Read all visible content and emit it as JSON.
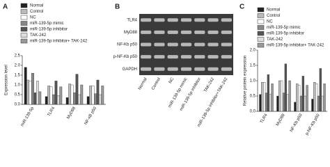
{
  "chart_data": [
    {
      "type": "bar",
      "label": "A",
      "y_label": "Expression level",
      "categories": [
        "miR-139-5p",
        "TLR4",
        "MyD88",
        "NF-κB p50"
      ],
      "series": [
        {
          "name": "Normal",
          "color": "#222222",
          "values": [
            1.9,
            0.4,
            0.35,
            0.4
          ]
        },
        {
          "name": "Control",
          "color": "#bbbbbb",
          "values": [
            1.25,
            0.95,
            1.05,
            0.95
          ]
        },
        {
          "name": "NC",
          "color": "#ffffff",
          "values": [
            1.2,
            0.9,
            1.0,
            0.95
          ]
        },
        {
          "name": "miR-139-5p mimic",
          "color": "#888888",
          "values": [
            1.6,
            0.5,
            0.6,
            0.55
          ]
        },
        {
          "name": "miR-139-5p inhibitor",
          "color": "#555555",
          "values": [
            0.6,
            1.2,
            1.55,
            1.25
          ]
        },
        {
          "name": "TAK-242",
          "color": "#dddddd",
          "values": [
            1.2,
            0.45,
            0.5,
            0.5
          ]
        },
        {
          "name": "miR-139-5p inhibitor+ TAK-242",
          "color": "#999999",
          "values": [
            0.65,
            0.9,
            1.0,
            0.95
          ]
        }
      ],
      "ylim": [
        0,
        2.5
      ],
      "yticks": [
        {
          "value": 0,
          "label": "0.0"
        },
        {
          "value": 0.5,
          "label": "0.5"
        },
        {
          "value": 1,
          "label": "1.0"
        },
        {
          "value": 1.5,
          "label": "1.5"
        },
        {
          "value": 2,
          "label": "2.0"
        },
        {
          "value": 2.5,
          "label": "2.5"
        }
      ]
    },
    {
      "type": "bar",
      "label": "C",
      "y_label": "Relative protein expression",
      "categories": [
        "TLR4",
        "MyD88",
        "NF-Kb p50",
        "p-NF-Kb p50"
      ],
      "series": [
        {
          "name": "Normal",
          "color": "#222222",
          "values": [
            0.55,
            0.5,
            0.3,
            0.4
          ]
        },
        {
          "name": "Control",
          "color": "#bbbbbb",
          "values": [
            0.95,
            1.0,
            0.9,
            0.95
          ]
        },
        {
          "name": "NC",
          "color": "#ffffff",
          "values": [
            0.95,
            1.0,
            0.85,
            0.9
          ]
        },
        {
          "name": "miR-139-5p mimic",
          "color": "#888888",
          "values": [
            0.6,
            0.6,
            0.5,
            0.5
          ]
        },
        {
          "name": "miR-139-5p inhibitor",
          "color": "#555555",
          "values": [
            1.2,
            1.55,
            1.15,
            1.4
          ]
        },
        {
          "name": "TAK-242",
          "color": "#dddddd",
          "values": [
            0.55,
            0.55,
            0.5,
            0.5
          ]
        },
        {
          "name": "miR-139-5p inhibitor+ TAK-242",
          "color": "#999999",
          "values": [
            0.9,
            1.0,
            0.85,
            0.9
          ]
        }
      ],
      "ylim": [
        0,
        2
      ],
      "yticks": [
        {
          "value": 0,
          "label": "0.0"
        },
        {
          "value": 0.5,
          "label": "0.5"
        },
        {
          "value": 1,
          "label": "1.0"
        },
        {
          "value": 1.5,
          "label": "1.5"
        },
        {
          "value": 2,
          "label": "2.0"
        }
      ]
    }
  ],
  "blot": {
    "label": "B",
    "rows": [
      "TLR4",
      "MyD88",
      "NF-Kb p50",
      "p-NF-Kb p50",
      "GAPDH"
    ],
    "columns": [
      "Normal",
      "Control",
      "NC",
      "miR-139-5p mimic",
      "miR-139-5p inhibitor",
      "TAK-242",
      "miR-139-5p inhibitor+TAK-242"
    ]
  }
}
